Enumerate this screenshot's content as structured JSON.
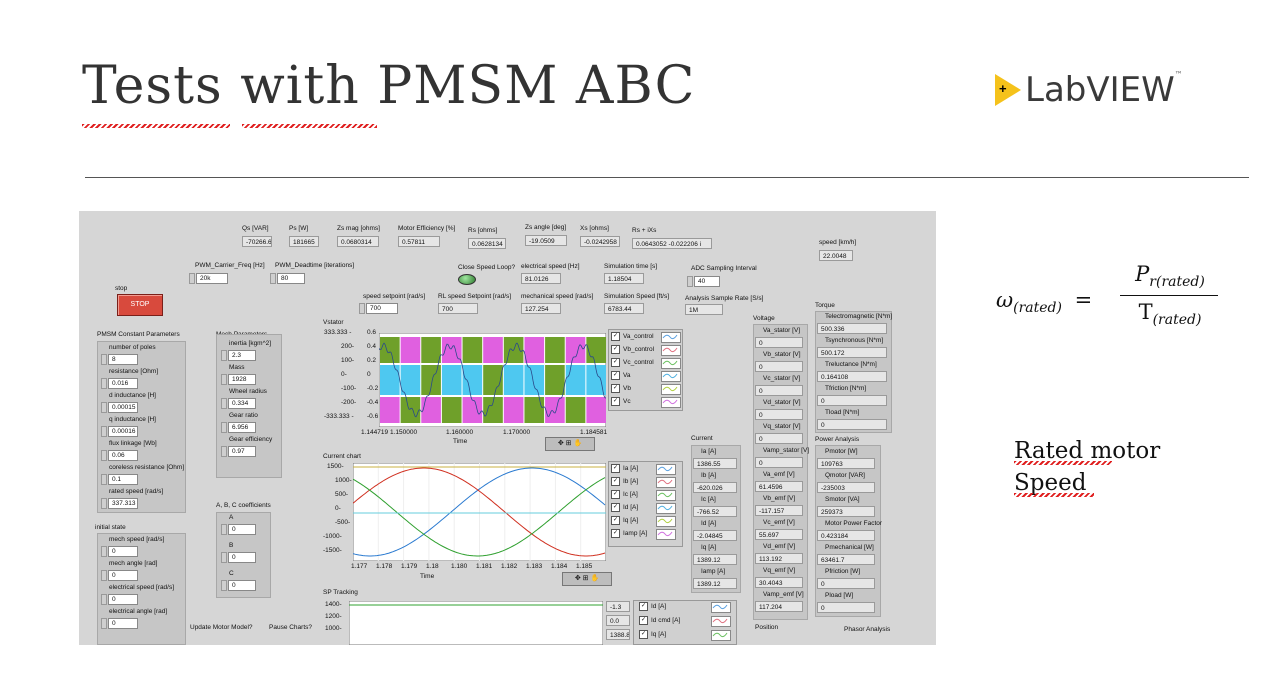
{
  "slide": {
    "title": "Tests with PMSM ABC",
    "logo_text": "LabVIEW",
    "logo_mark": "+",
    "logo_tm": "™",
    "notes_line1": "Rated motor",
    "notes_line2": "Speed",
    "formula": {
      "omega": "ω",
      "sub": "(rated)",
      "eq": "=",
      "num": "P",
      "num_sub": "r(rated)",
      "den": "T",
      "den_sub": "(rated)"
    }
  },
  "labview": {
    "top_readouts": [
      {
        "label": "Qs [VAR]",
        "value": "-70266.6"
      },
      {
        "label": "Ps [W]",
        "value": "181665"
      },
      {
        "label": "Zs mag [ohms]",
        "value": "0.0680314"
      },
      {
        "label": "Motor Efficiency [%]",
        "value": "0.57811"
      },
      {
        "label": "Rs [ohms]",
        "value": "0.0628134"
      },
      {
        "label": "Zs angle [deg]",
        "value": "-19.0509"
      },
      {
        "label": "Xs [ohms]",
        "value": "-0.0242958"
      },
      {
        "label": "Rs + iXs",
        "value": "0.0643052 -0.022206 i"
      },
      {
        "label": "speed [km/h]",
        "value": "22.0048"
      }
    ],
    "pwm_freq": {
      "label": "PWM_Carrier_Freq [Hz]",
      "value": "20k"
    },
    "pwm_dead": {
      "label": "PWM_Deadtime [iterations]",
      "value": "80"
    },
    "stop": {
      "label": "stop",
      "button": "STOP"
    },
    "close_loop": "Close Speed Loop?",
    "electrical_speed": {
      "label": "electrical speed [Hz]",
      "value": "81.0126"
    },
    "sim_time": {
      "label": "Simulation time [s]",
      "value": "1.18504"
    },
    "adc": {
      "label": "ADC Sampling Interval",
      "value": "40"
    },
    "speed_setpoint": {
      "label": "speed setpoint [rad/s]",
      "value": "700"
    },
    "rl_setpoint": {
      "label": "RL speed Setpoint [rad/s]",
      "value": "700"
    },
    "mech_speed": {
      "label": "mechanical speed [rad/s]",
      "value": "127.254"
    },
    "sim_speed": {
      "label": "Simulation Speed [ft/s]",
      "value": "6783.44"
    },
    "sample_rate": {
      "label": "Analysis Sample Rate [S/s]",
      "value": "1M"
    },
    "pmsm": {
      "title": "PMSM Constant Parameters",
      "items": [
        {
          "label": "number of poles",
          "value": "8"
        },
        {
          "label": "resistance [Ohm]",
          "value": "0.016"
        },
        {
          "label": "d inductance [H]",
          "value": "0.00015"
        },
        {
          "label": "q inductance [H]",
          "value": "0.00016"
        },
        {
          "label": "flux linkage [Wb]",
          "value": "0.06"
        },
        {
          "label": "coreless resistance [Ohm]",
          "value": "0.1"
        },
        {
          "label": "rated speed [rad/s]",
          "value": "337.313"
        }
      ]
    },
    "mech": {
      "title": "Mech Parameters",
      "items": [
        {
          "label": "inertia [kgm^2]",
          "value": "2.3"
        },
        {
          "label": "Mass",
          "value": "1928"
        },
        {
          "label": "Wheel radius",
          "value": "0.334"
        },
        {
          "label": "Gear ratio",
          "value": "6.956"
        },
        {
          "label": "Gear efficiency",
          "value": "0.97"
        }
      ]
    },
    "abc": {
      "title": "A, B, C coefficients",
      "items": [
        {
          "label": "A",
          "value": "0"
        },
        {
          "label": "B",
          "value": "0"
        },
        {
          "label": "C",
          "value": "0"
        }
      ]
    },
    "initial": {
      "title": "initial state",
      "items": [
        {
          "label": "mech speed [rad/s]",
          "value": "0"
        },
        {
          "label": "mech angle [rad]",
          "value": "0"
        },
        {
          "label": "electrical speed [rad/s]",
          "value": "0"
        },
        {
          "label": "electrical angle [rad]",
          "value": "0"
        }
      ]
    },
    "update_model": "Update Motor Model?",
    "pause_charts": "Pause Charts?",
    "vstator": {
      "title": "Vstator",
      "xlabel": "Time",
      "yticks": [
        "333.333 -",
        "200-",
        "100-",
        "0-",
        "-100-",
        "-200-",
        "-333.333 -"
      ],
      "yticks2": [
        "0.6",
        "0.4",
        "0.2",
        "0",
        "-0.2",
        "-0.4",
        "-0.6"
      ],
      "xticks": [
        "1.144719",
        "1.150000",
        "1.160000",
        "1.170000",
        "1.184581"
      ],
      "legend": [
        "Va_control",
        "Vb_control",
        "Vc_control",
        "Va",
        "Vb",
        "Vc"
      ]
    },
    "current_chart": {
      "title": "Current chart",
      "xlabel": "Time",
      "yticks": [
        "1500-",
        "1000-",
        "500-",
        "0-",
        "-500-",
        "-1000-",
        "-1500-"
      ],
      "xticks": [
        "1.177",
        "1.178",
        "1.179",
        "1.18",
        "1.180",
        "1.181",
        "1.182",
        "1.183",
        "1.184",
        "1.185"
      ],
      "legend": [
        "Ia [A]",
        "Ib [A]",
        "Ic [A]",
        "Id [A]",
        "Iq [A]",
        "Iamp [A]"
      ]
    },
    "sp_tracking": {
      "title": "SP Tracking",
      "yticks": [
        "1400-",
        "1200-",
        "1000-"
      ],
      "readouts": [
        "-1.3",
        "0.0",
        "1388.8"
      ],
      "legend": [
        "Id [A]",
        "Id cmd [A]",
        "Iq [A]"
      ]
    },
    "current_panel": {
      "title": "Current",
      "items": [
        {
          "label": "Ia [A]",
          "value": "1386.55"
        },
        {
          "label": "Ib [A]",
          "value": "-620.026"
        },
        {
          "label": "Ic [A]",
          "value": "-766.52"
        },
        {
          "label": "Id [A]",
          "value": "-2.04845"
        },
        {
          "label": "Iq [A]",
          "value": "1389.12"
        },
        {
          "label": "Iamp [A]",
          "value": "1389.12"
        }
      ]
    },
    "voltage_panel": {
      "title": "Voltage",
      "items": [
        {
          "label": "Va_stator [V]",
          "value": "0"
        },
        {
          "label": "Vb_stator [V]",
          "value": "0"
        },
        {
          "label": "Vc_stator [V]",
          "value": "0"
        },
        {
          "label": "Vd_stator [V]",
          "value": "0"
        },
        {
          "label": "Vq_stator [V]",
          "value": "0"
        },
        {
          "label": "Vamp_stator [V]",
          "value": "0"
        },
        {
          "label": "Va_emf [V]",
          "value": "61.4596"
        },
        {
          "label": "Vb_emf [V]",
          "value": "-117.157"
        },
        {
          "label": "Vc_emf [V]",
          "value": "55.697"
        },
        {
          "label": "Vd_emf [V]",
          "value": "113.192"
        },
        {
          "label": "Vq_emf [V]",
          "value": "30.4043"
        },
        {
          "label": "Vamp_emf [V]",
          "value": "117.204"
        }
      ]
    },
    "position": "Position",
    "torque_panel": {
      "title": "Torque",
      "items": [
        {
          "label": "Telectromagnetic [N*m]",
          "value": "500.336"
        },
        {
          "label": "Tsynchronous [N*m]",
          "value": "500.172"
        },
        {
          "label": "Treluctance [N*m]",
          "value": "0.164108"
        },
        {
          "label": "Tfriction [N*m]",
          "value": "0"
        },
        {
          "label": "Tload [N*m]",
          "value": "0"
        }
      ]
    },
    "power_panel": {
      "title": "Power Analysis",
      "items": [
        {
          "label": "Pmotor [W]",
          "value": "109763"
        },
        {
          "label": "Qmotor [VAR]",
          "value": "-235003"
        },
        {
          "label": "Smotor [VA]",
          "value": "259373"
        },
        {
          "label": "Motor Power Factor",
          "value": "0.423184"
        },
        {
          "label": "Pmechanical [W]",
          "value": "63461.7"
        },
        {
          "label": "Pfriction [W]",
          "value": "0"
        },
        {
          "label": "Pload [W]",
          "value": "0"
        }
      ]
    },
    "phasor": "Phasor Analysis",
    "colors": {
      "pink": "#e060e0",
      "green": "#6fa02a",
      "blue": "#4ec8f0",
      "bg": "#d6d6d6"
    }
  }
}
